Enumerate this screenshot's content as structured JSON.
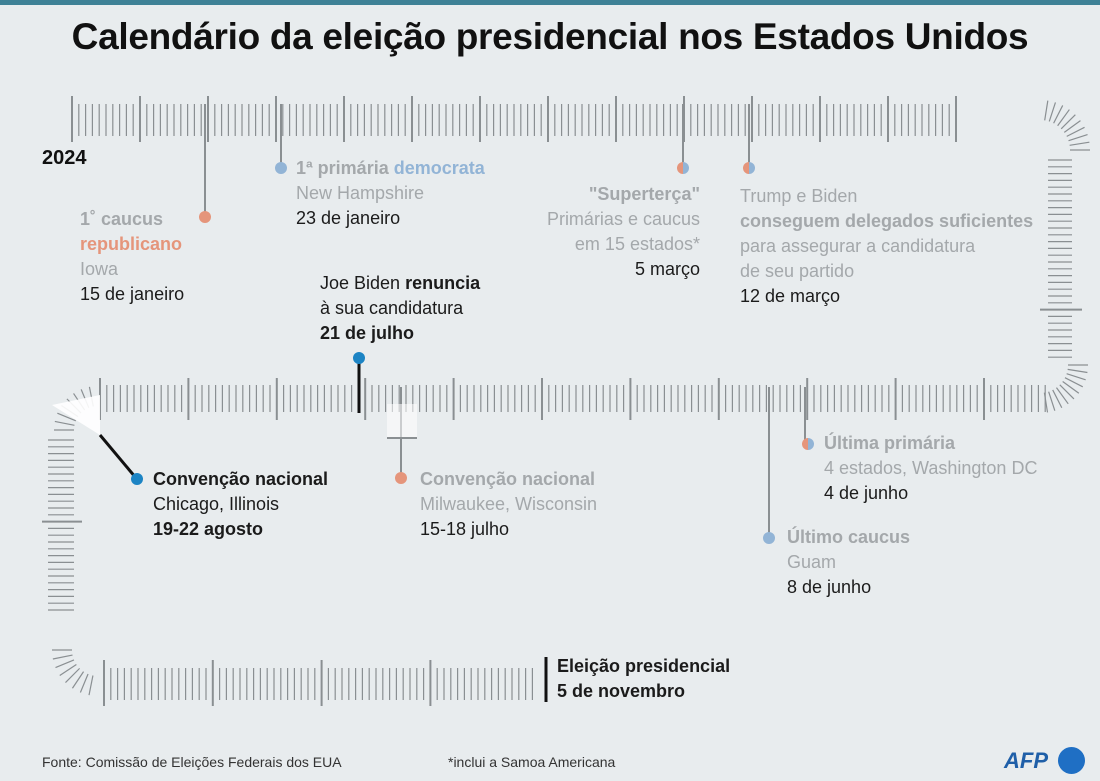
{
  "title": "Calendário da eleição presidencial nos Estados Unidos",
  "year": "2024",
  "colors": {
    "republican": "#e5957b",
    "democrat": "#92b4d6",
    "both": "#3a8bbf",
    "tick": "#8a8f92"
  },
  "events": {
    "caucus_rep": {
      "l1": "1˚ caucus",
      "l2": "republicano",
      "l3": "Iowa",
      "date": "15 de janeiro"
    },
    "nh": {
      "l1a": "1ª primária ",
      "l1b": "democrata",
      "l2": "New Hampshire",
      "date": "23 de janeiro"
    },
    "superterca": {
      "l1": "\"Superterça\"",
      "l2": "Primárias e caucus",
      "l3": "em 15 estados*",
      "date": "5 março"
    },
    "delegates": {
      "l1": "Trump e Biden",
      "l2": "conseguem delegados suficientes",
      "l3": "para assegurar a candidatura",
      "l4": "de seu partido",
      "date": "12 de março"
    },
    "biden": {
      "l1": "Joe Biden ",
      "l1b": "renuncia",
      "l2": "à sua candidatura",
      "date": "21 de julho"
    },
    "conv_dem": {
      "l1": "Convenção nacional",
      "l2": "Chicago, Illinois",
      "date": "19-22 agosto"
    },
    "conv_rep": {
      "l1": "Convenção nacional",
      "l2": "Milwaukee, Wisconsin",
      "date": "15-18 julho"
    },
    "last_primary": {
      "l1": "Última primária",
      "l2": "4 estados, Washington DC",
      "date": "4 de junho"
    },
    "last_caucus": {
      "l1": "Último caucus",
      "l2": "Guam",
      "date": "8 de junho"
    },
    "election": {
      "l1": "Eleição presidencial",
      "date": "5 de novembro"
    }
  },
  "footer": {
    "source": "Fonte: Comissão de Eleições Federais dos EUA",
    "note": "*inclui a Samoa Americana",
    "logo": "AFP"
  }
}
